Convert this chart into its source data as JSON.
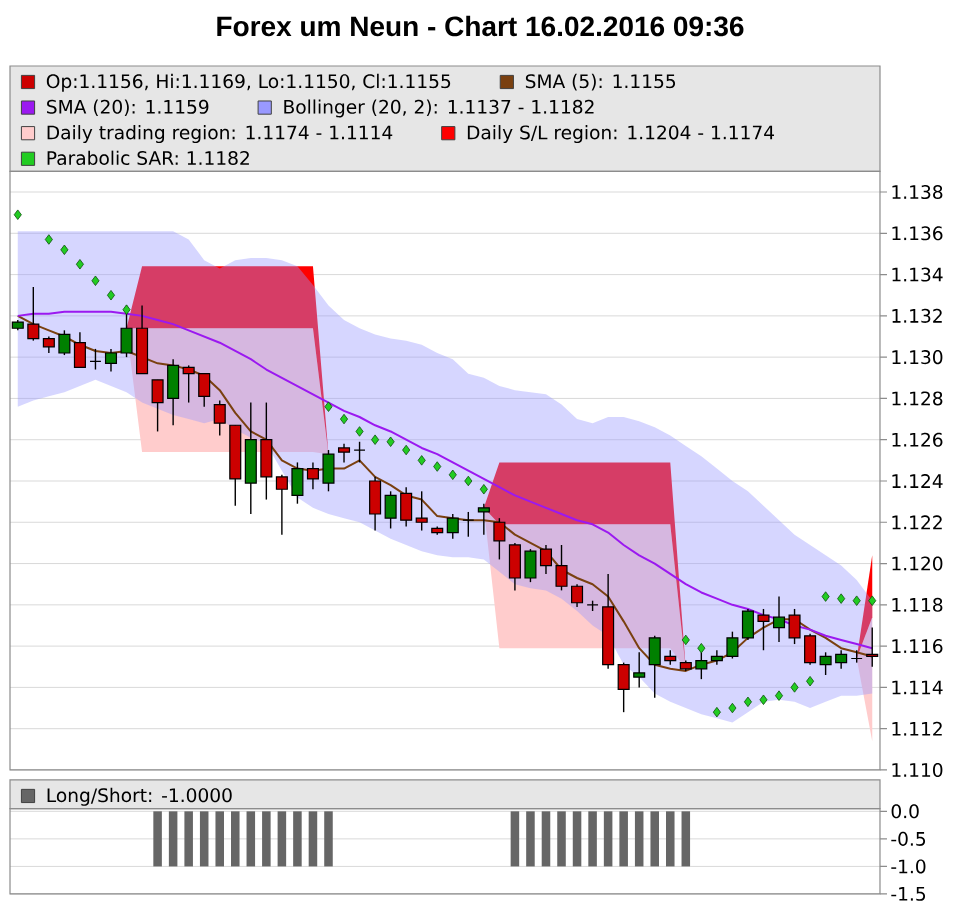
{
  "chart_data": [
    {
      "type": "candlestick",
      "title": "Forex um Neun - Chart 16.02.2016 09:36",
      "categories": [
        null,
        null,
        null,
        null,
        null,
        null,
        null,
        null,
        null,
        null,
        null,
        null,
        null,
        null,
        null,
        null,
        null,
        null,
        null,
        null,
        null,
        null,
        null,
        null,
        null,
        null,
        null,
        null,
        null,
        null,
        null,
        null,
        null,
        null,
        null,
        null,
        null,
        null,
        null,
        null,
        null,
        null,
        null,
        null,
        null,
        null,
        null,
        null,
        null,
        null,
        null,
        null,
        null,
        null,
        null,
        null
      ],
      "ylim": [
        1.11,
        1.139
      ],
      "yticks": [
        {
          "value": 1.11,
          "label": "1.110"
        },
        1.112,
        1.114,
        1.116,
        1.118,
        {
          "value": 1.12,
          "label": "1.120"
        },
        1.122,
        1.124,
        1.126,
        1.128,
        {
          "value": 1.13,
          "label": "1.130"
        },
        1.132,
        1.134,
        1.136,
        1.138
      ],
      "grid": "y",
      "legend": "top",
      "tick_labels": "y",
      "series": [
        {
          "type": "candlestick",
          "name": "Op:1.1156, Hi:1.1169, Lo:1.1150, Cl:1.1155",
          "color": "#cc0000",
          "ohlc": [
            [
              1.1314,
              1.1318,
              1.1313,
              1.1317
            ],
            [
              1.1316,
              1.1334,
              1.1308,
              1.1309
            ],
            [
              1.1309,
              1.131,
              1.1302,
              1.1305
            ],
            [
              1.1302,
              1.1313,
              1.1301,
              1.1311
            ],
            [
              1.1307,
              1.1312,
              1.1295,
              1.1295
            ],
            [
              1.1298,
              1.1304,
              1.1294,
              1.1298
            ],
            [
              1.1297,
              1.1304,
              1.1293,
              1.1302
            ],
            [
              1.1302,
              1.1325,
              1.13,
              1.1314
            ],
            [
              1.1314,
              1.1325,
              1.1292,
              1.1292
            ],
            [
              1.1289,
              1.1289,
              1.1264,
              1.1278
            ],
            [
              1.128,
              1.1299,
              1.1267,
              1.1296
            ],
            [
              1.1295,
              1.1296,
              1.1278,
              1.1292
            ],
            [
              1.1292,
              1.1292,
              1.1276,
              1.1281
            ],
            [
              1.1277,
              1.1279,
              1.1262,
              1.1268
            ],
            [
              1.1267,
              1.1267,
              1.1228,
              1.1241
            ],
            [
              1.1239,
              1.1278,
              1.1224,
              1.126
            ],
            [
              1.126,
              1.1278,
              1.1231,
              1.1242
            ],
            [
              1.1242,
              1.1243,
              1.1214,
              1.1236
            ],
            [
              1.1233,
              1.1249,
              1.1229,
              1.1246
            ],
            [
              1.1246,
              1.1249,
              1.1236,
              1.1241
            ],
            [
              1.1239,
              1.1255,
              1.1235,
              1.1253
            ],
            [
              1.1256,
              1.1258,
              1.1249,
              1.1254
            ],
            [
              1.1255,
              1.1259,
              1.1249,
              1.1255
            ],
            [
              1.124,
              1.1242,
              1.1216,
              1.1224
            ],
            [
              1.1222,
              1.1235,
              1.1217,
              1.1233
            ],
            [
              1.1234,
              1.1237,
              1.1218,
              1.1221
            ],
            [
              1.1222,
              1.1235,
              1.1216,
              1.122
            ],
            [
              1.1217,
              1.1218,
              1.1214,
              1.1215
            ],
            [
              1.1215,
              1.1224,
              1.1212,
              1.1222
            ],
            [
              1.1221,
              1.1225,
              1.1213,
              1.1221
            ],
            [
              1.1225,
              1.1229,
              1.1214,
              1.1227
            ],
            [
              1.122,
              1.1222,
              1.1202,
              1.1211
            ],
            [
              1.1209,
              1.121,
              1.1187,
              1.1193
            ],
            [
              1.1193,
              1.1207,
              1.1191,
              1.1206
            ],
            [
              1.1207,
              1.1209,
              1.1195,
              1.1199
            ],
            [
              1.1199,
              1.1209,
              1.1187,
              1.1189
            ],
            [
              1.1189,
              1.119,
              1.1179,
              1.1181
            ],
            [
              1.118,
              1.1182,
              1.1177,
              1.118
            ],
            [
              1.1179,
              1.1195,
              1.1149,
              1.1151
            ],
            [
              1.1151,
              1.1152,
              1.1128,
              1.1139
            ],
            [
              1.1145,
              1.1157,
              1.114,
              1.1147
            ],
            [
              1.1151,
              1.1165,
              1.1135,
              1.1164
            ],
            [
              1.1155,
              1.1158,
              1.1151,
              1.1153
            ],
            [
              1.1152,
              1.1153,
              1.1148,
              1.1149
            ],
            [
              1.1149,
              1.1157,
              1.1144,
              1.1153
            ],
            [
              1.1153,
              1.1158,
              1.1151,
              1.1155
            ],
            [
              1.1155,
              1.1167,
              1.1154,
              1.1164
            ],
            [
              1.1164,
              1.1178,
              1.1163,
              1.1177
            ],
            [
              1.1175,
              1.1178,
              1.1158,
              1.1172
            ],
            [
              1.1169,
              1.1184,
              1.1162,
              1.1174
            ],
            [
              1.1175,
              1.1178,
              1.1161,
              1.1164
            ],
            [
              1.1165,
              1.1166,
              1.1151,
              1.1152
            ],
            [
              1.1151,
              1.1157,
              1.1146,
              1.1155
            ],
            [
              1.1152,
              1.1158,
              1.1149,
              1.1156
            ],
            [
              1.1154,
              1.1158,
              1.1152,
              1.1154
            ],
            [
              1.1156,
              1.1169,
              1.115,
              1.1155
            ]
          ],
          "colors": [
            "#008000",
            "#cc0000",
            "#cc0000",
            "#008000",
            "#cc0000",
            "#000000",
            "#008000",
            "#008000",
            "#cc0000",
            "#cc0000",
            "#008000",
            "#cc0000",
            "#cc0000",
            "#cc0000",
            "#cc0000",
            "#008000",
            "#cc0000",
            "#cc0000",
            "#008000",
            "#cc0000",
            "#008000",
            "#cc0000",
            "#000000",
            "#cc0000",
            "#008000",
            "#cc0000",
            "#cc0000",
            "#cc0000",
            "#008000",
            "#000000",
            "#008000",
            "#cc0000",
            "#cc0000",
            "#008000",
            "#cc0000",
            "#cc0000",
            "#cc0000",
            "#000000",
            "#cc0000",
            "#cc0000",
            "#008000",
            "#008000",
            "#cc0000",
            "#cc0000",
            "#008000",
            "#008000",
            "#008000",
            "#008000",
            "#cc0000",
            "#008000",
            "#cc0000",
            "#cc0000",
            "#008000",
            "#008000",
            "#000000",
            "#cc0000"
          ]
        },
        {
          "type": "line",
          "name": "SMA (5): 1.1155",
          "color": "#7a4010",
          "values": [
            1.132,
            1.1316,
            1.1313,
            1.131,
            1.1306,
            1.1303,
            1.1302,
            1.1303,
            1.13,
            1.1297,
            1.1296,
            1.1294,
            1.1291,
            1.1284,
            1.1273,
            1.1264,
            1.126,
            1.125,
            1.1246,
            1.1245,
            1.1246,
            1.1246,
            1.125,
            1.1242,
            1.1238,
            1.1233,
            1.1231,
            1.1223,
            1.1222,
            1.1221,
            1.1221,
            1.122,
            1.1214,
            1.121,
            1.1206,
            1.1197,
            1.1193,
            1.119,
            1.1184,
            1.1172,
            1.1159,
            1.1151,
            1.1149,
            1.1148,
            1.1151,
            1.1153,
            1.1157,
            1.1164,
            1.1169,
            1.1173,
            1.1173,
            1.1168,
            1.1164,
            1.1159,
            1.1157,
            1.1155
          ]
        },
        {
          "type": "line",
          "name": "SMA (20): 1.1159",
          "color": "#9b19f0",
          "values": [
            1.132,
            1.1321,
            1.1321,
            1.1322,
            1.1322,
            1.1322,
            1.1322,
            1.1321,
            1.132,
            1.1318,
            1.1316,
            1.1313,
            1.131,
            1.1307,
            1.1303,
            1.1299,
            1.1294,
            1.129,
            1.1286,
            1.1282,
            1.1278,
            1.1274,
            1.1271,
            1.1267,
            1.1264,
            1.126,
            1.1256,
            1.1253,
            1.1249,
            1.1245,
            1.1241,
            1.1237,
            1.1233,
            1.123,
            1.1227,
            1.1224,
            1.1221,
            1.1219,
            1.1215,
            1.1209,
            1.1204,
            1.12,
            1.1195,
            1.119,
            1.1186,
            1.1183,
            1.118,
            1.1178,
            1.1175,
            1.1173,
            1.117,
            1.1168,
            1.1165,
            1.1163,
            1.1161,
            1.1159
          ]
        },
        {
          "type": "line",
          "name": "Bollinger (20, 2): 1.1137 - 1.1182",
          "color": "#9999ff",
          "values": [
            null,
            null,
            null,
            null,
            null,
            null,
            null,
            null,
            null,
            null,
            null,
            null,
            null,
            null,
            null,
            null,
            null,
            null,
            null,
            null,
            null,
            null,
            null,
            null,
            null,
            null,
            null,
            null,
            null,
            null,
            null,
            null,
            null,
            null,
            null,
            null,
            null,
            null,
            null,
            null,
            null,
            null,
            null,
            null,
            null,
            null,
            null,
            null,
            null,
            null,
            null,
            null,
            null,
            null,
            null,
            null
          ],
          "upper": [
            1.1361,
            1.1361,
            1.1361,
            1.1361,
            1.1361,
            1.1361,
            1.1361,
            1.1361,
            1.1361,
            1.1361,
            1.1361,
            1.1357,
            1.1347,
            1.1343,
            1.1347,
            1.1348,
            1.1348,
            1.1347,
            1.1344,
            1.1335,
            1.1325,
            1.1318,
            1.1314,
            1.1311,
            1.1309,
            1.1308,
            1.1306,
            1.1302,
            1.1299,
            1.1292,
            1.129,
            1.1286,
            1.1284,
            1.1283,
            1.1282,
            1.1277,
            1.127,
            1.1268,
            1.1271,
            1.1271,
            1.1269,
            1.1266,
            1.1262,
            1.1257,
            1.1252,
            1.1246,
            1.124,
            1.1235,
            1.1228,
            1.1221,
            1.1214,
            1.1209,
            1.1204,
            1.1199,
            1.1192,
            1.1182
          ],
          "lower": [
            1.1276,
            1.1279,
            1.1281,
            1.1283,
            1.1286,
            1.1289,
            1.1286,
            1.1283,
            1.1278,
            1.1275,
            1.1272,
            1.127,
            1.1268,
            1.127,
            1.1265,
            1.1261,
            1.1258,
            1.1245,
            1.1232,
            1.1227,
            1.1224,
            1.1222,
            1.122,
            1.1216,
            1.1212,
            1.1209,
            1.1206,
            1.1204,
            1.1203,
            1.1203,
            1.1202,
            1.1196,
            1.119,
            1.1188,
            1.1187,
            1.1183,
            1.1177,
            1.117,
            1.1165,
            1.1151,
            1.1145,
            1.1137,
            1.1133,
            1.113,
            1.1127,
            1.1125,
            1.1123,
            1.1128,
            1.1133,
            1.1134,
            1.1133,
            1.113,
            1.1133,
            1.1136,
            1.1136,
            1.1137
          ]
        },
        {
          "type": "line",
          "name": "Daily trading region: 1.1174 - 1.1114",
          "color": "#ffcccc",
          "values": [
            null,
            null,
            null,
            null,
            null,
            null,
            null,
            null,
            null,
            null,
            null,
            null,
            null,
            null,
            null,
            null,
            null,
            null,
            null,
            null,
            null,
            null,
            null,
            null,
            null,
            null,
            null,
            null,
            null,
            null,
            null,
            null,
            null,
            null,
            null,
            null,
            null,
            null,
            null,
            null,
            null,
            null,
            null,
            null,
            null,
            null,
            null,
            null,
            null,
            null,
            null,
            null,
            null,
            null,
            null,
            null
          ],
          "upper": [
            null,
            null,
            null,
            null,
            null,
            null,
            null,
            1.1314,
            1.1314,
            1.1314,
            1.1314,
            1.1314,
            1.1314,
            1.1314,
            1.1314,
            1.1314,
            1.1314,
            1.1314,
            1.1314,
            1.1314,
            1.1253,
            null,
            null,
            null,
            null,
            null,
            null,
            null,
            null,
            null,
            1.1227,
            1.1219,
            1.1219,
            1.1219,
            1.1219,
            1.1219,
            1.1219,
            1.1219,
            1.1219,
            1.1219,
            1.1219,
            1.1219,
            1.1219,
            1.1149,
            null,
            null,
            null,
            null,
            null,
            null,
            null,
            null,
            null,
            null,
            1.1154,
            1.1174
          ],
          "lower": [
            null,
            null,
            null,
            null,
            null,
            null,
            null,
            1.1314,
            1.1254,
            1.1254,
            1.1254,
            1.1254,
            1.1254,
            1.1254,
            1.1254,
            1.1254,
            1.1254,
            1.1254,
            1.1254,
            1.1254,
            1.1253,
            null,
            null,
            null,
            null,
            null,
            null,
            null,
            null,
            null,
            1.1227,
            1.1159,
            1.1159,
            1.1159,
            1.1159,
            1.1159,
            1.1159,
            1.1159,
            1.1159,
            1.1159,
            1.1159,
            1.1159,
            1.1159,
            1.1149,
            null,
            null,
            null,
            null,
            null,
            null,
            null,
            null,
            null,
            null,
            1.1154,
            1.1114
          ]
        },
        {
          "type": "line",
          "name": "Daily S/L region: 1.1204 - 1.1174",
          "color": "#ff0000",
          "values": [
            null,
            null,
            null,
            null,
            null,
            null,
            null,
            null,
            null,
            null,
            null,
            null,
            null,
            null,
            null,
            null,
            null,
            null,
            null,
            null,
            null,
            null,
            null,
            null,
            null,
            null,
            null,
            null,
            null,
            null,
            null,
            null,
            null,
            null,
            null,
            null,
            null,
            null,
            null,
            null,
            null,
            null,
            null,
            null,
            null,
            null,
            null,
            null,
            null,
            null,
            null,
            null,
            null,
            null,
            null,
            null
          ],
          "upper": [
            null,
            null,
            null,
            null,
            null,
            null,
            null,
            1.1314,
            1.1344,
            1.1344,
            1.1344,
            1.1344,
            1.1344,
            1.1344,
            1.1344,
            1.1344,
            1.1344,
            1.1344,
            1.1344,
            1.1344,
            1.1253,
            null,
            null,
            null,
            null,
            null,
            null,
            null,
            null,
            null,
            1.1227,
            1.1249,
            1.1249,
            1.1249,
            1.1249,
            1.1249,
            1.1249,
            1.1249,
            1.1249,
            1.1249,
            1.1249,
            1.1249,
            1.1249,
            1.1149,
            null,
            null,
            null,
            null,
            null,
            null,
            null,
            null,
            null,
            null,
            1.1154,
            1.1204
          ],
          "lower": [
            null,
            null,
            null,
            null,
            null,
            null,
            null,
            1.1314,
            1.1314,
            1.1314,
            1.1314,
            1.1314,
            1.1314,
            1.1314,
            1.1314,
            1.1314,
            1.1314,
            1.1314,
            1.1314,
            1.1314,
            1.1253,
            null,
            null,
            null,
            null,
            null,
            null,
            null,
            null,
            null,
            1.1227,
            1.1219,
            1.1219,
            1.1219,
            1.1219,
            1.1219,
            1.1219,
            1.1219,
            1.1219,
            1.1219,
            1.1219,
            1.1219,
            1.1219,
            1.1149,
            null,
            null,
            null,
            null,
            null,
            null,
            null,
            null,
            null,
            null,
            1.1154,
            1.1174
          ]
        },
        {
          "type": "scatter",
          "name": "Parabolic SAR: 1.1182",
          "color": "#22cc22",
          "marker": "diamond",
          "values": [
            1.1369,
            null,
            1.1357,
            1.1352,
            1.1345,
            1.1337,
            1.133,
            1.1323,
            null,
            null,
            null,
            null,
            null,
            null,
            null,
            null,
            null,
            null,
            null,
            null,
            1.1276,
            1.127,
            1.1264,
            1.126,
            1.1259,
            1.1255,
            1.125,
            1.1247,
            1.1243,
            1.124,
            1.1236,
            null,
            null,
            null,
            null,
            null,
            null,
            null,
            null,
            null,
            null,
            null,
            null,
            1.1163,
            1.1159,
            1.1128,
            1.113,
            1.1133,
            1.1134,
            1.1136,
            1.114,
            1.1143,
            1.1184,
            1.1183,
            1.1182,
            1.1182
          ]
        }
      ]
    },
    {
      "type": "bar",
      "categories": [
        null,
        null,
        null,
        null,
        null,
        null,
        null,
        null,
        null,
        null,
        null,
        null,
        null,
        null,
        null,
        null,
        null,
        null,
        null,
        null,
        null,
        null,
        null,
        null,
        null,
        null,
        null,
        null,
        null,
        null,
        null,
        null,
        null,
        null,
        null,
        null,
        null,
        null,
        null,
        null,
        null,
        null,
        null,
        null,
        null,
        null,
        null,
        null,
        null,
        null,
        null,
        null,
        null,
        null,
        null,
        null
      ],
      "ylim": [
        -1.5,
        0.05
      ],
      "yticks": [
        {
          "value": 0,
          "label": "0.0"
        },
        {
          "value": -0.5,
          "label": "-0.5"
        },
        {
          "value": -1,
          "label": "-1.0"
        },
        {
          "value": -1.5,
          "label": "-1.5"
        }
      ],
      "grid": "y",
      "legend": "top",
      "tick_labels": "y",
      "series": [
        {
          "name": "Long/Short: -1.0000",
          "color": "#666666",
          "values": [
            null,
            null,
            null,
            null,
            null,
            null,
            null,
            null,
            null,
            -1,
            -1,
            -1,
            -1,
            -1,
            -1,
            -1,
            -1,
            -1,
            -1,
            -1,
            -1,
            null,
            null,
            null,
            null,
            null,
            null,
            null,
            null,
            null,
            null,
            null,
            -1,
            -1,
            -1,
            -1,
            -1,
            -1,
            -1,
            -1,
            -1,
            -1,
            -1,
            -1,
            null,
            null,
            null,
            null,
            null,
            null,
            null,
            null,
            null,
            null,
            null,
            null
          ]
        }
      ]
    }
  ]
}
